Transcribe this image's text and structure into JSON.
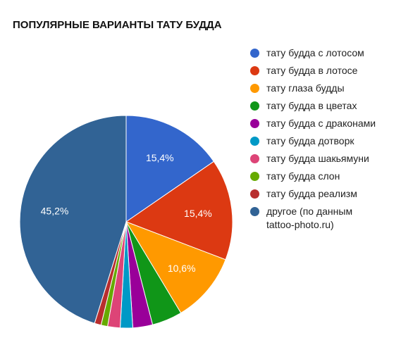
{
  "chart_data": {
    "type": "pie",
    "title": "ПОПУЛЯРНЫЕ ВАРИАНТЫ ТАТУ БУДДА",
    "legend_position": "right",
    "slices": [
      {
        "label": "тату будда с лотосом",
        "value": 15.4,
        "display": "15,4%",
        "color": "#3366cc"
      },
      {
        "label": "тату будда в лотосе",
        "value": 15.4,
        "display": "15,4%",
        "color": "#dc3912"
      },
      {
        "label": "тату глаза будды",
        "value": 10.6,
        "display": "10,6%",
        "color": "#ff9900"
      },
      {
        "label": "тату будда в цветах",
        "value": 4.6,
        "display": "",
        "color": "#109618"
      },
      {
        "label": "тату будда с драконами",
        "value": 3.0,
        "display": "",
        "color": "#990099"
      },
      {
        "label": "тату будда дотворк",
        "value": 1.9,
        "display": "",
        "color": "#0099c6"
      },
      {
        "label": "тату будда шакьямуни",
        "value": 1.9,
        "display": "",
        "color": "#dd4477"
      },
      {
        "label": "тату будда слон",
        "value": 1.0,
        "display": "",
        "color": "#66aa00"
      },
      {
        "label": "тату будда реализм",
        "value": 1.0,
        "display": "",
        "color": "#b82e2e"
      },
      {
        "label": "другое (по данным tattoo-photo.ru)",
        "value": 45.2,
        "display": "45,2%",
        "color": "#316395"
      }
    ]
  }
}
